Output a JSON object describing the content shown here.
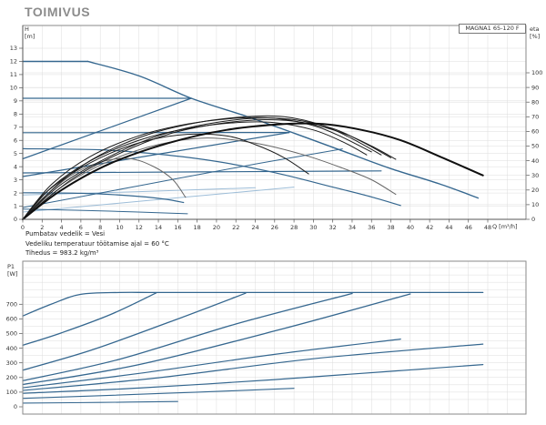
{
  "title": "TOIMIVUS",
  "pump_label": "MAGNA1 65-120 F",
  "notes": {
    "fluid": "Pumbatav vedelik = Vesi",
    "temperature": "Vedeliku temperatuur töötamise ajal = 60 °C",
    "density": "Tihedus = 983.2 kg/m³"
  },
  "axes": {
    "h": {
      "name": "H",
      "unit": "[m]"
    },
    "eta": {
      "name": "eta",
      "unit": "[%]"
    },
    "p1": {
      "name": "P1",
      "unit": "[W]"
    },
    "q": {
      "label": "Q [m³/h]"
    }
  },
  "colors": {
    "blue": "#35678f",
    "light_blue": "#9dbdd8",
    "black": "#1c1c1c",
    "heavy_black": "#0f0f0f",
    "gray": "#666666",
    "grid": "#dcdcdc",
    "frame": "#8a8a8a",
    "text": "#333333",
    "title": "#8c8c8c"
  },
  "chart_data": [
    {
      "id": "hq",
      "type": "line",
      "title": "Pump performance field H/Q with efficiency curves",
      "x_axis": {
        "label": "Q [m³/h]",
        "min": 0,
        "max": 48,
        "tick_step": 2
      },
      "y_axis_left": {
        "label": "H [m]",
        "min": 0,
        "max": 13,
        "tick_step": 1
      },
      "y_axis_right": {
        "label": "eta [%]",
        "min": 0,
        "max": 100,
        "tick_step": 10
      },
      "grid": true,
      "series": [
        {
          "name": "setpoint-line-low-a",
          "axis": "h",
          "color": "#9dbdd8",
          "width": 1,
          "straight": false,
          "points": [
            [
              0,
              1.85
            ],
            [
              12,
              2.1
            ],
            [
              24,
              2.4
            ]
          ]
        },
        {
          "name": "setpoint-line-low-b",
          "axis": "h",
          "color": "#9dbdd8",
          "width": 1,
          "straight": false,
          "points": [
            [
              0,
              0.55
            ],
            [
              14,
              1.5
            ],
            [
              28,
              2.45
            ]
          ]
        },
        {
          "name": "max-head-flat-12m",
          "axis": "h",
          "color": "#35678f",
          "width": 1.4,
          "straight": true,
          "points": [
            [
              0,
              12
            ],
            [
              6.7,
              12
            ]
          ]
        },
        {
          "name": "max-speed-curve",
          "axis": "h",
          "color": "#35678f",
          "width": 1.4,
          "straight": false,
          "points": [
            [
              6.7,
              12
            ],
            [
              12,
              10.9
            ],
            [
              17.4,
              9.2
            ],
            [
              23,
              7.85
            ],
            [
              28,
              6.55
            ],
            [
              33,
              5.2
            ],
            [
              38,
              3.85
            ],
            [
              43,
              2.7
            ],
            [
              47,
              1.62
            ]
          ]
        },
        {
          "name": "const-pressure-9.2m",
          "axis": "h",
          "color": "#35678f",
          "width": 1.2,
          "straight": true,
          "points": [
            [
              0,
              9.2
            ],
            [
              17.4,
              9.2
            ]
          ]
        },
        {
          "name": "prop-pressure-to-9.2m",
          "axis": "h",
          "color": "#35678f",
          "width": 1.2,
          "straight": true,
          "points": [
            [
              0,
              4.6
            ],
            [
              17.4,
              9.2
            ]
          ]
        },
        {
          "name": "const-pressure-6.5m",
          "axis": "h",
          "color": "#35678f",
          "width": 1.2,
          "straight": true,
          "points": [
            [
              0,
              6.58
            ],
            [
              27.5,
              6.6
            ]
          ]
        },
        {
          "name": "prop-pressure-to-6.5m",
          "axis": "h",
          "color": "#35678f",
          "width": 1.2,
          "straight": true,
          "points": [
            [
              0,
              3.25
            ],
            [
              27.5,
              6.6
            ]
          ]
        },
        {
          "name": "mid-speed-curve",
          "axis": "h",
          "color": "#35678f",
          "width": 1.2,
          "straight": false,
          "points": [
            [
              0,
              5.37
            ],
            [
              8,
              5.28
            ],
            [
              14,
              4.95
            ],
            [
              20,
              4.4
            ],
            [
              26,
              3.55
            ],
            [
              32,
              2.45
            ],
            [
              36,
              1.7
            ],
            [
              39,
              1.05
            ]
          ]
        },
        {
          "name": "const-pressure-3.5m",
          "axis": "h",
          "color": "#35678f",
          "width": 1.2,
          "straight": true,
          "points": [
            [
              0,
              3.53
            ],
            [
              18,
              3.6
            ],
            [
              37,
              3.68
            ]
          ]
        },
        {
          "name": "prop-pressure-long",
          "axis": "h",
          "color": "#35678f",
          "width": 1,
          "straight": false,
          "points": [
            [
              0,
              0.9
            ],
            [
              12,
              2.55
            ],
            [
              24,
              4.2
            ],
            [
              33,
              5.35
            ]
          ]
        },
        {
          "name": "min-speed-curve",
          "axis": "h",
          "color": "#35678f",
          "width": 1.2,
          "straight": false,
          "points": [
            [
              0,
              2.02
            ],
            [
              6,
              1.98
            ],
            [
              11,
              1.8
            ],
            [
              14.5,
              1.55
            ],
            [
              16.6,
              1.28
            ]
          ]
        },
        {
          "name": "low-flat-curve",
          "axis": "h",
          "color": "#35678f",
          "width": 1,
          "straight": false,
          "points": [
            [
              0,
              0.78
            ],
            [
              9,
              0.62
            ],
            [
              17,
              0.42
            ]
          ]
        },
        {
          "name": "eta-curve-short-gray",
          "axis": "eta",
          "color": "#666666",
          "width": 1,
          "straight": false,
          "points": [
            [
              0,
              0
            ],
            [
              2,
              14
            ],
            [
              5,
              30
            ],
            [
              8,
              39
            ],
            [
              11,
              41.5
            ],
            [
              13.5,
              36
            ],
            [
              15.5,
              27
            ],
            [
              16.8,
              15
            ]
          ]
        },
        {
          "name": "eta-curve-mid-gray",
          "axis": "eta",
          "color": "#666666",
          "width": 1,
          "straight": false,
          "points": [
            [
              0,
              0
            ],
            [
              4,
              22
            ],
            [
              9,
              40
            ],
            [
              14,
              51
            ],
            [
              19,
              55.5
            ],
            [
              24,
              52
            ],
            [
              29,
              44
            ],
            [
              33,
              35
            ],
            [
              36,
              27
            ],
            [
              38.5,
              17
            ]
          ]
        },
        {
          "name": "eta-curve-1",
          "axis": "eta",
          "color": "#1c1c1c",
          "width": 1,
          "straight": false,
          "points": [
            [
              0,
              0
            ],
            [
              3,
              22
            ],
            [
              7,
              40
            ],
            [
              12,
              54
            ],
            [
              17,
              62
            ],
            [
              22,
              66
            ],
            [
              26,
              66
            ],
            [
              30,
              61
            ],
            [
              33,
              53
            ],
            [
              35.5,
              44
            ]
          ]
        },
        {
          "name": "eta-curve-2",
          "axis": "eta",
          "color": "#1c1c1c",
          "width": 1,
          "straight": false,
          "points": [
            [
              0,
              0
            ],
            [
              3,
              24
            ],
            [
              7,
              43
            ],
            [
              12,
              57
            ],
            [
              17,
              65
            ],
            [
              22,
              69
            ],
            [
              26,
              69
            ],
            [
              30,
              64
            ],
            [
              33,
              56
            ],
            [
              36,
              46
            ]
          ]
        },
        {
          "name": "eta-curve-3",
          "axis": "eta",
          "color": "#1c1c1c",
          "width": 1,
          "straight": false,
          "points": [
            [
              0,
              0
            ],
            [
              4,
              26
            ],
            [
              8,
              44
            ],
            [
              13,
              58
            ],
            [
              18,
              66
            ],
            [
              23,
              70
            ],
            [
              27,
              70
            ],
            [
              31,
              64
            ],
            [
              34,
              55
            ],
            [
              37,
              44
            ]
          ]
        },
        {
          "name": "eta-curve-4",
          "axis": "eta",
          "color": "#1c1c1c",
          "width": 1,
          "straight": false,
          "points": [
            [
              0,
              0
            ],
            [
              4,
              24
            ],
            [
              9,
              43
            ],
            [
              14,
              57
            ],
            [
              19,
              65
            ],
            [
              24,
              69
            ],
            [
              28,
              68
            ],
            [
              32,
              62
            ],
            [
              35,
              53
            ],
            [
              38,
              42
            ]
          ]
        },
        {
          "name": "eta-curve-5",
          "axis": "eta",
          "color": "#1c1c1c",
          "width": 1,
          "straight": false,
          "points": [
            [
              0,
              0
            ],
            [
              5,
              27
            ],
            [
              10,
              45
            ],
            [
              15,
              58
            ],
            [
              20,
              65
            ],
            [
              25,
              68
            ],
            [
              29,
              66
            ],
            [
              33,
              59
            ],
            [
              36,
              50
            ],
            [
              38.5,
              41
            ]
          ]
        },
        {
          "name": "eta-curve-6",
          "axis": "eta",
          "color": "#1c1c1c",
          "width": 1,
          "straight": false,
          "points": [
            [
              0,
              0
            ],
            [
              2,
              16
            ],
            [
              5,
              31
            ],
            [
              9,
              45
            ],
            [
              13,
              54
            ],
            [
              17,
              58
            ],
            [
              21,
              57
            ],
            [
              24,
              51
            ],
            [
              27,
              42
            ],
            [
              29.5,
              31
            ]
          ]
        },
        {
          "name": "eta-curve-max",
          "axis": "eta",
          "color": "#0f0f0f",
          "width": 2,
          "straight": false,
          "points": [
            [
              0,
              0
            ],
            [
              4,
              20
            ],
            [
              9,
              38
            ],
            [
              15,
              52
            ],
            [
              21,
              61
            ],
            [
              27,
              65
            ],
            [
              31,
              65
            ],
            [
              35,
              61
            ],
            [
              39,
              54
            ],
            [
              43,
              43
            ],
            [
              47.5,
              30
            ]
          ]
        }
      ]
    },
    {
      "id": "p1",
      "type": "line",
      "title": "Power input P1/Q",
      "x_axis": {
        "label": "Q [m³/h]",
        "min": 0,
        "max": 48,
        "tick_step": 2,
        "labels_hidden": true
      },
      "y_axis_left": {
        "label": "P1 [W]",
        "min": 0,
        "max": 700,
        "tick_step": 100,
        "grid_step": 50
      },
      "grid": true,
      "series": [
        {
          "name": "p1-max",
          "axis": "p",
          "color": "#35678f",
          "width": 1.3,
          "straight": false,
          "points": [
            [
              0,
              620
            ],
            [
              3,
              702
            ],
            [
              6,
              768
            ],
            [
              10,
              780
            ],
            [
              14,
              780
            ],
            [
              24,
              780
            ],
            [
              47.5,
              780
            ]
          ]
        },
        {
          "name": "p1-speed-2",
          "axis": "p",
          "color": "#35678f",
          "width": 1.3,
          "straight": false,
          "points": [
            [
              0,
              420
            ],
            [
              4,
              505
            ],
            [
              9,
              628
            ],
            [
              13.8,
              778
            ]
          ]
        },
        {
          "name": "p1-speed-3",
          "axis": "p",
          "color": "#35678f",
          "width": 1.3,
          "straight": false,
          "points": [
            [
              0,
              250
            ],
            [
              7,
              385
            ],
            [
              15,
              575
            ],
            [
              23,
              775
            ]
          ]
        },
        {
          "name": "p1-speed-4",
          "axis": "p",
          "color": "#35678f",
          "width": 1.3,
          "straight": false,
          "points": [
            [
              0,
              178
            ],
            [
              10,
              325
            ],
            [
              22,
              565
            ],
            [
              34,
              773
            ]
          ]
        },
        {
          "name": "p1-speed-5",
          "axis": "p",
          "color": "#35678f",
          "width": 1.3,
          "straight": false,
          "points": [
            [
              0,
              152
            ],
            [
              12,
              288
            ],
            [
              27,
              535
            ],
            [
              40,
              770
            ]
          ]
        },
        {
          "name": "p1-speed-6",
          "axis": "p",
          "color": "#35678f",
          "width": 1.2,
          "straight": false,
          "points": [
            [
              0,
              130
            ],
            [
              12,
              228
            ],
            [
              26,
              358
            ],
            [
              39,
              462
            ]
          ]
        },
        {
          "name": "p1-speed-7",
          "axis": "p",
          "color": "#35678f",
          "width": 1.2,
          "straight": false,
          "points": [
            [
              0,
              112
            ],
            [
              14,
              198
            ],
            [
              30,
              328
            ],
            [
              47.5,
              428
            ]
          ]
        },
        {
          "name": "p1-speed-8",
          "axis": "p",
          "color": "#35678f",
          "width": 1.2,
          "straight": false,
          "points": [
            [
              0,
              92
            ],
            [
              12,
              128
            ],
            [
              26,
              186
            ],
            [
              38,
              242
            ],
            [
              47.5,
              288
            ]
          ]
        },
        {
          "name": "p1-speed-9",
          "axis": "p",
          "color": "#35678f",
          "width": 1.1,
          "straight": false,
          "points": [
            [
              0,
              58
            ],
            [
              8,
              76
            ],
            [
              18,
              100
            ],
            [
              28,
              126
            ]
          ]
        },
        {
          "name": "p1-min",
          "axis": "p",
          "color": "#35678f",
          "width": 1.1,
          "straight": false,
          "points": [
            [
              0,
              25
            ],
            [
              8,
              30
            ],
            [
              16,
              36
            ]
          ]
        }
      ]
    }
  ]
}
